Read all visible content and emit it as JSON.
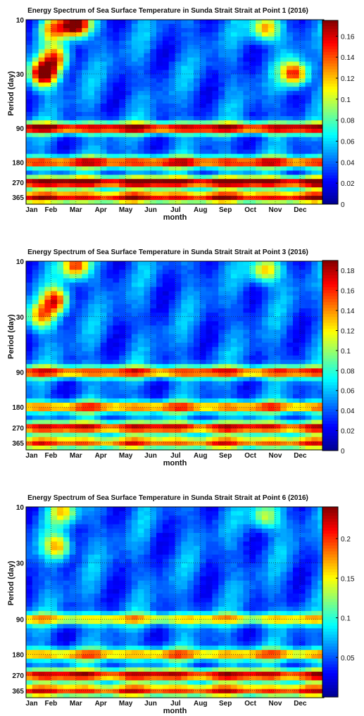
{
  "colormap": [
    "#00008f",
    "#0000ff",
    "#0080ff",
    "#00ffff",
    "#80ff80",
    "#ffff00",
    "#ff8000",
    "#ff0000",
    "#800000"
  ],
  "chart_data": [
    {
      "type": "heatmap",
      "title": "Energy Spectrum of Sea Surface Temperature in Sunda Strait Strait at Point 1 (2016)",
      "xlabel": "month",
      "ylabel": "Period (day)",
      "xticks": [
        "Jan",
        "Feb",
        "Mar",
        "Apr",
        "May",
        "Jun",
        "Jul",
        "Aug",
        "Sep",
        "Oct",
        "Nov",
        "Dec"
      ],
      "yticks": [
        "10",
        "30",
        "90",
        "180",
        "270",
        "365"
      ],
      "grid": true,
      "colorbar": {
        "vmin": 0,
        "vmax": 0.175,
        "ticks": [
          0,
          0.02,
          0.04,
          0.06,
          0.08,
          0.1,
          0.12,
          0.14,
          0.16
        ],
        "labels": [
          "0",
          "0.02",
          "0.04",
          "0.06",
          "0.08",
          "0.1",
          "0.12",
          "0.14",
          "0.16"
        ]
      },
      "features": [
        {
          "month": 3.0,
          "period": 11,
          "value": 0.17
        },
        {
          "month": 1.7,
          "period": 30,
          "value": 0.16
        },
        {
          "month": 2.2,
          "period": 22,
          "value": 0.1
        },
        {
          "month": 11.8,
          "period": 30,
          "value": 0.12
        },
        {
          "month": 10.6,
          "period": 12,
          "value": 0.1
        },
        {
          "month": 2.1,
          "period": 12,
          "value": 0.08
        }
      ],
      "bands": [
        {
          "period": 90,
          "value": 0.13
        },
        {
          "period": 180,
          "value": 0.12
        },
        {
          "period": 270,
          "value": 0.14
        },
        {
          "period": 365,
          "value": 0.12
        }
      ]
    },
    {
      "type": "heatmap",
      "title": "Energy Spectrum of Sea Surface Temperature in Sunda Strait Strait at Point 3 (2016)",
      "xlabel": "month",
      "ylabel": "Period (day)",
      "xticks": [
        "Jan",
        "Feb",
        "Mar",
        "Apr",
        "May",
        "Jun",
        "Jul",
        "Aug",
        "Sep",
        "Oct",
        "Nov",
        "Dec"
      ],
      "yticks": [
        "10",
        "30",
        "90",
        "180",
        "270",
        "365"
      ],
      "grid": true,
      "colorbar": {
        "vmin": 0,
        "vmax": 0.19,
        "ticks": [
          0,
          0.02,
          0.04,
          0.06,
          0.08,
          0.1,
          0.12,
          0.14,
          0.16,
          0.18
        ],
        "labels": [
          "0",
          "0.02",
          "0.04",
          "0.06",
          "0.08",
          "0.1",
          "0.12",
          "0.14",
          "0.16",
          "0.18"
        ]
      },
      "features": [
        {
          "month": 3.0,
          "period": 11,
          "value": 0.12
        },
        {
          "month": 2.2,
          "period": 22,
          "value": 0.12
        },
        {
          "month": 1.6,
          "period": 30,
          "value": 0.1
        },
        {
          "month": 10.6,
          "period": 12,
          "value": 0.1
        }
      ],
      "bands": [
        {
          "period": 90,
          "value": 0.12
        },
        {
          "period": 180,
          "value": 0.11
        },
        {
          "period": 270,
          "value": 0.13
        },
        {
          "period": 365,
          "value": 0.11
        }
      ]
    },
    {
      "type": "heatmap",
      "title": "Energy Spectrum of Sea Surface Temperature in Sunda Strait Strait at Point 6 (2016)",
      "xlabel": "month",
      "ylabel": "Period (day)",
      "xticks": [
        "Jan",
        "Feb",
        "Mar",
        "Apr",
        "May",
        "Jun",
        "Jul",
        "Aug",
        "Sep",
        "Oct",
        "Nov",
        "Dec"
      ],
      "yticks": [
        "10",
        "30",
        "90",
        "180",
        "270",
        "365"
      ],
      "grid": true,
      "colorbar": {
        "vmin": 0,
        "vmax": 0.24,
        "ticks": [
          0.05,
          0.1,
          0.15,
          0.2
        ],
        "labels": [
          "0.05",
          "0.1",
          "0.15",
          "0.2"
        ]
      },
      "features": [
        {
          "month": 2.3,
          "period": 22,
          "value": 0.12
        },
        {
          "month": 2.5,
          "period": 11,
          "value": 0.1
        },
        {
          "month": 10.6,
          "period": 12,
          "value": 0.1
        }
      ],
      "bands": [
        {
          "period": 90,
          "value": 0.11
        },
        {
          "period": 180,
          "value": 0.13
        },
        {
          "period": 270,
          "value": 0.17
        },
        {
          "period": 365,
          "value": 0.15
        }
      ]
    }
  ]
}
